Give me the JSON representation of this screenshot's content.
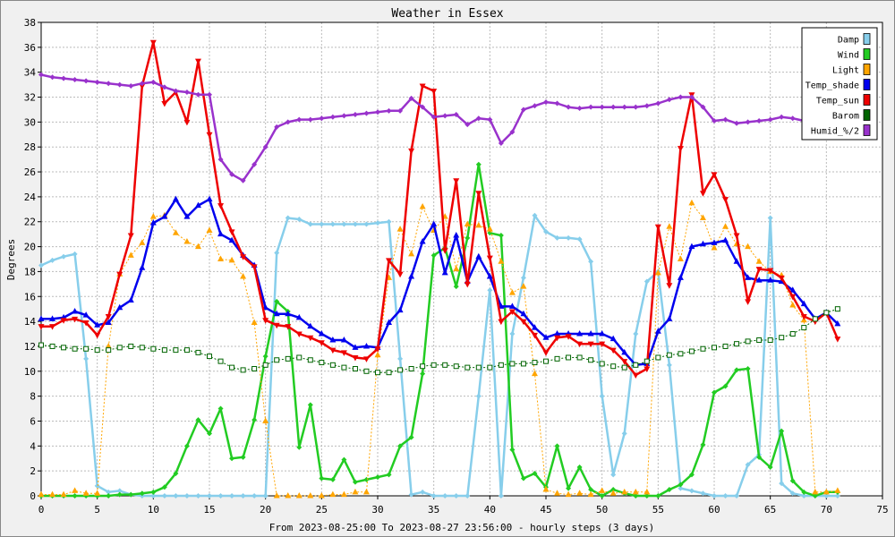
{
  "chart_data": {
    "type": "line",
    "title": "Weather in Essex",
    "xlabel": "From 2023-08-25:00 To 2023-08-27 23:56:00 - hourly steps (3 days)",
    "ylabel": "Degrees",
    "xlim": [
      0,
      75
    ],
    "ylim": [
      0,
      38
    ],
    "xticks": [
      0,
      5,
      10,
      15,
      20,
      25,
      30,
      35,
      40,
      45,
      50,
      55,
      60,
      65,
      70,
      75
    ],
    "yticks": [
      0,
      2,
      4,
      6,
      8,
      10,
      12,
      14,
      16,
      18,
      20,
      22,
      24,
      26,
      28,
      30,
      32,
      34,
      36,
      38
    ],
    "grid": true,
    "legend_position": "top-right",
    "series": [
      {
        "name": "Damp",
        "color": "#87ceeb",
        "marker": "diamond",
        "values": [
          18.5,
          18.9,
          19.2,
          19.4,
          11.0,
          0.8,
          0.3,
          0.4,
          0.1,
          0.0,
          0.0,
          0.0,
          0.0,
          0.0,
          0.0,
          0.0,
          0.0,
          0.0,
          0.0,
          0.0,
          0.0,
          19.5,
          22.3,
          22.2,
          21.8,
          21.8,
          21.8,
          21.8,
          21.8,
          21.8,
          21.9,
          22.0,
          11.0,
          0.1,
          0.3,
          0.0,
          0.0,
          0.0,
          0.0,
          8.0,
          16.5,
          0.0,
          13.0,
          17.5,
          22.5,
          21.2,
          20.7,
          20.7,
          20.6,
          18.8,
          8.0,
          1.7,
          5.0,
          13.0,
          17.2,
          18.0,
          10.5,
          0.6,
          0.4,
          0.2,
          0.0,
          0.0,
          0.0,
          2.5,
          3.3,
          22.3,
          1.0,
          0.2,
          0.0,
          0.0,
          0.0,
          0.0
        ]
      },
      {
        "name": "Wind",
        "color": "#22cc22",
        "marker": "diamond",
        "values": [
          0.0,
          0.0,
          0.0,
          0.0,
          0.0,
          0.0,
          0.0,
          0.1,
          0.1,
          0.2,
          0.3,
          0.7,
          1.8,
          4.0,
          6.1,
          5.0,
          7.0,
          3.0,
          3.1,
          6.1,
          11.2,
          15.6,
          14.8,
          3.9,
          7.3,
          1.4,
          1.3,
          2.9,
          1.1,
          1.3,
          1.5,
          1.7,
          4.0,
          4.7,
          9.8,
          19.3,
          19.9,
          16.8,
          20.7,
          26.6,
          21.1,
          20.9,
          3.7,
          1.4,
          1.8,
          0.7,
          4.0,
          0.6,
          2.3,
          0.5,
          0.0,
          0.5,
          0.2,
          0.0,
          0.0,
          0.0,
          0.5,
          0.9,
          1.7,
          4.1,
          8.3,
          8.8,
          10.1,
          10.2,
          3.1,
          2.3,
          5.2,
          1.2,
          0.3,
          0.0,
          0.3,
          0.3
        ]
      },
      {
        "name": "Light",
        "color": "#ffa500",
        "marker": "triangle-up",
        "dashed": true,
        "values": [
          0.1,
          0.1,
          0.1,
          0.4,
          0.2,
          0.2,
          12.0,
          17.8,
          19.3,
          20.3,
          22.4,
          22.5,
          21.1,
          20.4,
          20.0,
          21.3,
          19.0,
          18.9,
          17.6,
          13.9,
          6.0,
          0.0,
          0.0,
          0.0,
          0.0,
          0.0,
          0.1,
          0.1,
          0.3,
          0.3,
          11.3,
          17.5,
          21.4,
          19.4,
          23.2,
          21.3,
          22.4,
          18.2,
          21.8,
          21.7,
          21.4,
          18.8,
          16.3,
          16.8,
          9.8,
          0.5,
          0.2,
          0.1,
          0.2,
          0.1,
          0.4,
          0.2,
          0.3,
          0.3,
          0.3,
          17.9,
          21.6,
          19.0,
          23.5,
          22.3,
          19.9,
          21.6,
          20.2,
          20.0,
          18.8,
          18.0,
          17.7,
          15.3,
          14.1,
          0.3,
          0.3,
          0.4
        ]
      },
      {
        "name": "Temp_shade",
        "color": "#0000ee",
        "marker": "triangle-up",
        "values": [
          14.2,
          14.2,
          14.3,
          14.8,
          14.5,
          13.7,
          13.9,
          15.1,
          15.7,
          18.3,
          21.9,
          22.4,
          23.8,
          22.4,
          23.3,
          23.8,
          21.0,
          20.5,
          19.3,
          18.5,
          15.1,
          14.6,
          14.6,
          14.3,
          13.6,
          13.0,
          12.5,
          12.5,
          11.9,
          12.0,
          11.9,
          13.9,
          14.9,
          17.6,
          20.4,
          21.8,
          17.9,
          20.9,
          17.2,
          19.2,
          17.6,
          15.2,
          15.2,
          14.6,
          13.5,
          12.7,
          13.0,
          13.0,
          13.0,
          13.0,
          13.0,
          12.6,
          11.5,
          10.5,
          10.6,
          13.2,
          14.2,
          17.5,
          20.0,
          20.2,
          20.3,
          20.5,
          18.8,
          17.5,
          17.3,
          17.3,
          17.2,
          16.5,
          15.4,
          14.2,
          14.7,
          13.8
        ]
      },
      {
        "name": "Temp_sun",
        "color": "#ee0000",
        "marker": "triangle-down",
        "values": [
          13.6,
          13.6,
          14.1,
          14.2,
          13.9,
          12.9,
          14.4,
          17.8,
          20.9,
          32.9,
          36.4,
          31.5,
          32.4,
          30.0,
          34.9,
          29.0,
          23.3,
          21.2,
          19.2,
          18.4,
          14.1,
          13.7,
          13.6,
          13.0,
          12.7,
          12.3,
          11.7,
          11.5,
          11.1,
          11.0,
          11.8,
          18.9,
          17.8,
          27.7,
          32.9,
          32.5,
          19.7,
          25.3,
          17.0,
          24.3,
          19.1,
          14.0,
          14.8,
          14.0,
          12.9,
          11.5,
          12.7,
          12.8,
          12.2,
          12.2,
          12.2,
          11.7,
          10.8,
          9.7,
          10.2,
          21.6,
          16.9,
          27.9,
          32.2,
          24.3,
          25.8,
          23.8,
          20.9,
          15.6,
          18.2,
          18.1,
          17.5,
          16.0,
          14.4,
          14.0,
          14.7,
          12.6
        ]
      },
      {
        "name": "Barom",
        "color": "#006400",
        "marker": "square-open",
        "dashed": true,
        "values": [
          12.1,
          12.0,
          11.9,
          11.8,
          11.8,
          11.7,
          11.7,
          11.9,
          12.0,
          11.9,
          11.8,
          11.7,
          11.7,
          11.7,
          11.5,
          11.2,
          10.8,
          10.3,
          10.1,
          10.2,
          10.5,
          10.9,
          11.0,
          11.1,
          10.9,
          10.7,
          10.5,
          10.3,
          10.2,
          10.0,
          9.9,
          9.9,
          10.1,
          10.2,
          10.4,
          10.5,
          10.5,
          10.4,
          10.3,
          10.3,
          10.3,
          10.5,
          10.6,
          10.6,
          10.7,
          10.8,
          11.0,
          11.1,
          11.1,
          10.9,
          10.6,
          10.4,
          10.3,
          10.5,
          10.8,
          11.1,
          11.3,
          11.4,
          11.6,
          11.8,
          11.9,
          12.0,
          12.2,
          12.4,
          12.5,
          12.5,
          12.7,
          13.0,
          13.5,
          14.2,
          14.7,
          15.0
        ]
      },
      {
        "name": "Humid_%/2",
        "color": "#9932cc",
        "marker": "diamond",
        "values": [
          33.8,
          33.6,
          33.5,
          33.4,
          33.3,
          33.2,
          33.1,
          33.0,
          32.9,
          33.1,
          33.2,
          32.8,
          32.5,
          32.4,
          32.2,
          32.2,
          27.0,
          25.8,
          25.3,
          26.6,
          28.0,
          29.6,
          30.0,
          30.2,
          30.2,
          30.3,
          30.4,
          30.5,
          30.6,
          30.7,
          30.8,
          30.9,
          30.9,
          31.9,
          31.2,
          30.4,
          30.5,
          30.6,
          29.8,
          30.3,
          30.2,
          28.3,
          29.2,
          31.0,
          31.3,
          31.6,
          31.5,
          31.2,
          31.1,
          31.2,
          31.2,
          31.2,
          31.2,
          31.2,
          31.3,
          31.5,
          31.8,
          32.0,
          32.0,
          31.2,
          30.1,
          30.2,
          29.9,
          30.0,
          30.1,
          30.2,
          30.4,
          30.3,
          30.1,
          30.0,
          29.9,
          30.0
        ]
      }
    ]
  }
}
